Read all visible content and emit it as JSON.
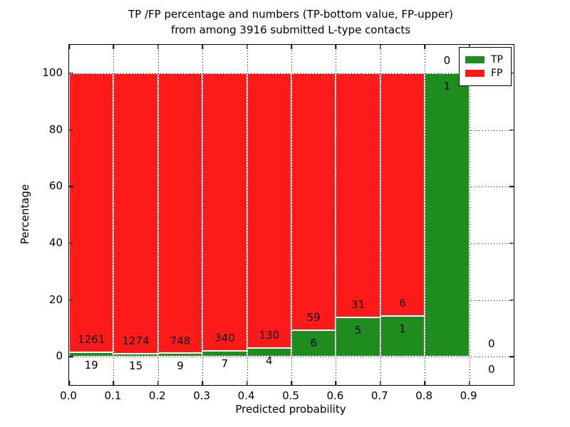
{
  "title": {
    "line1": "TP /FP percentage and numbers (TP-bottom value, FP-upper)",
    "line2": "from among 3916 submitted L-type contacts"
  },
  "axes": {
    "xlabel": "Predicted probability",
    "ylabel": "Percentage",
    "xtick_labels": [
      "0.0",
      "0.1",
      "0.2",
      "0.3",
      "0.4",
      "0.5",
      "0.6",
      "0.7",
      "0.8",
      "0.9"
    ],
    "ytick_labels": [
      "0",
      "20",
      "40",
      "60",
      "80",
      "100"
    ]
  },
  "legend": {
    "items": [
      {
        "label": "TP",
        "color": "#1e8c1e"
      },
      {
        "label": "FP",
        "color": "#ff1a1a"
      }
    ]
  },
  "chart_data": {
    "type": "bar",
    "stacked": true,
    "title": "TP /FP percentage and numbers (TP-bottom value, FP-upper)\nfrom among 3916 submitted L-type contacts",
    "xlabel": "Predicted probability",
    "ylabel": "Percentage",
    "xlim": [
      0.0,
      1.0
    ],
    "ylim": [
      -10,
      110
    ],
    "xticks": [
      0.0,
      0.1,
      0.2,
      0.3,
      0.4,
      0.5,
      0.6,
      0.7,
      0.8,
      0.9
    ],
    "yticks": [
      0,
      20,
      40,
      60,
      80,
      100
    ],
    "grid": true,
    "legend_position": "upper right",
    "total_contacts": 3916,
    "bin_width": 0.1,
    "bin_starts": [
      0.0,
      0.1,
      0.2,
      0.3,
      0.4,
      0.5,
      0.6,
      0.7,
      0.8,
      0.9
    ],
    "series": [
      {
        "name": "TP",
        "color": "#1e8c1e",
        "counts": [
          19,
          15,
          9,
          7,
          4,
          6,
          5,
          1,
          1,
          0
        ]
      },
      {
        "name": "FP",
        "color": "#ff1a1a",
        "counts": [
          1261,
          1274,
          748,
          340,
          130,
          59,
          31,
          6,
          0,
          0
        ]
      }
    ],
    "tp_pct": [
      1.48,
      1.16,
      1.19,
      2.02,
      2.99,
      9.23,
      13.89,
      14.29,
      100,
      null
    ],
    "fp_pct": [
      98.52,
      98.84,
      98.81,
      97.98,
      97.01,
      90.77,
      86.11,
      85.71,
      0,
      null
    ]
  }
}
